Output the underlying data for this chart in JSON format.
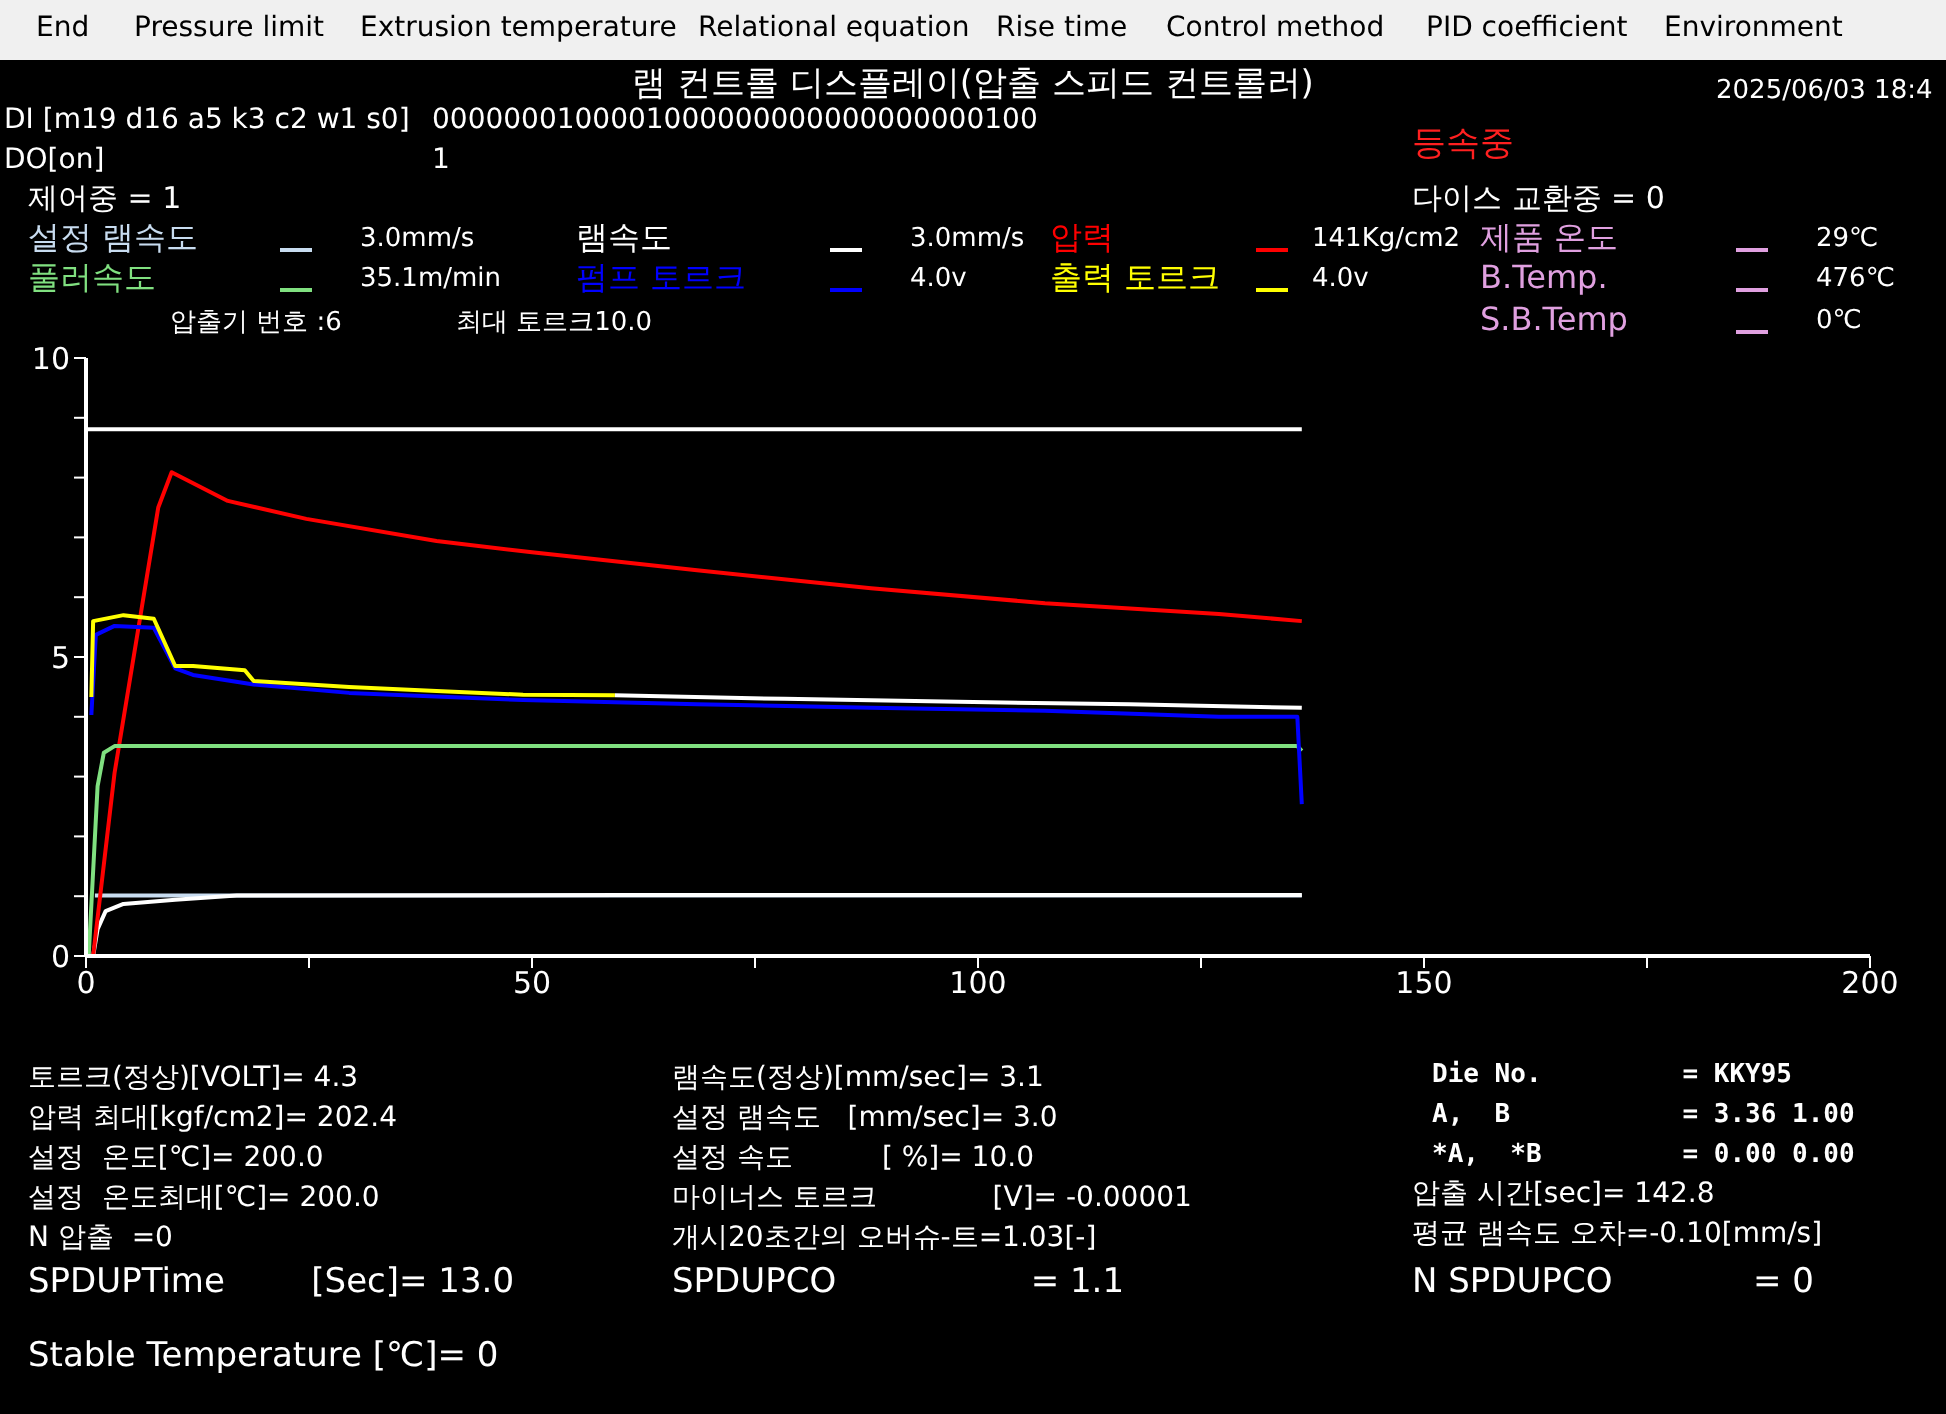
{
  "chart_data": {
    "type": "line",
    "title": "램 컨트롤 디스플레이(압출 스피드 컨트롤러)",
    "legend": "top",
    "xlim": [
      0,
      200
    ],
    "ylim": [
      0,
      10
    ],
    "xticks": [
      0,
      {
        "value": 25,
        "label": null
      },
      50,
      {
        "value": 75,
        "label": null
      },
      100,
      {
        "value": 125,
        "label": null
      },
      150,
      {
        "value": 175,
        "label": null
      },
      200
    ],
    "yticks": [
      0,
      {
        "value": 1,
        "label": null
      },
      {
        "value": 2,
        "label": null
      },
      {
        "value": 3,
        "label": null
      },
      {
        "value": 4,
        "label": null
      },
      5,
      {
        "value": 6,
        "label": null
      },
      {
        "value": 7,
        "label": null
      },
      {
        "value": 8,
        "label": null
      },
      {
        "value": 9,
        "label": null
      },
      10
    ],
    "series": [
      {
        "name": "설정 램속도",
        "color": "#c8dcf0",
        "x": [
          1,
          20,
          60,
          100,
          136.3
        ],
        "values": [
          1.01,
          1.01,
          1.01,
          1.01,
          1.01
        ]
      },
      {
        "name": "램속도",
        "color": "#ffffff",
        "x": [
          0.8,
          1.3,
          2.2,
          4.2,
          10,
          16.9,
          60,
          136.3
        ],
        "values": [
          0,
          0.45,
          0.75,
          0.87,
          0.94,
          1.01,
          1.02,
          1.02
        ]
      },
      {
        "name": "압력",
        "color": "#ff0000",
        "x": [
          0.8,
          3.2,
          8.1,
          9.6,
          15.9,
          24.7,
          39.3,
          50,
          68.5,
          88,
          107.5,
          127,
          136.3
        ],
        "values": [
          0,
          3.06,
          7.5,
          8.09,
          7.61,
          7.31,
          6.94,
          6.75,
          6.45,
          6.15,
          5.9,
          5.72,
          5.6
        ]
      },
      {
        "name": "풀러속도",
        "color": "#80e080",
        "x": [
          0.3,
          1.3,
          2,
          3.2,
          60,
          135.8,
          136.3
        ],
        "values": [
          0,
          2.84,
          3.4,
          3.51,
          3.51,
          3.51,
          3.43
        ]
      },
      {
        "name": "펌프 토르크",
        "color": "#0000ff",
        "x": [
          0.6,
          1.1,
          3.2,
          7.6,
          10,
          12,
          18.8,
          29.5,
          49,
          68.5,
          88,
          107.5,
          127,
          135.8,
          136.3
        ],
        "values": [
          4.03,
          5.37,
          5.52,
          5.49,
          4.81,
          4.7,
          4.54,
          4.4,
          4.28,
          4.21,
          4.15,
          4.1,
          4,
          4,
          2.54
        ]
      },
      {
        "name": "출력 토르크",
        "color": "#ffff00",
        "x": [
          0.6,
          0.8,
          4.2,
          7.6,
          10,
          12,
          17.8,
          18.8,
          29.5,
          39.3,
          49,
          59.3
        ],
        "values": [
          4.33,
          5.6,
          5.7,
          5.64,
          4.85,
          4.85,
          4.78,
          4.6,
          4.5,
          4.43,
          4.37,
          4.36
        ]
      },
      {
        "name": "제품 온도",
        "color": "#e0a0e0"
      },
      {
        "name": "B.Temp.",
        "color": "#e0a0e0"
      },
      {
        "name": "S.B.Temp",
        "color": "#e0a0e0"
      },
      {
        "color": "#ffffff",
        "x": [
          0,
          136.3
        ],
        "values": [
          8.81,
          8.81
        ]
      },
      {
        "color": "#ffffff",
        "x": [
          59.3,
          78.3,
          97.8,
          117,
          136.3
        ],
        "values": [
          4.36,
          4.3,
          4.25,
          4.21,
          4.15
        ]
      }
    ],
    "annotations": [
      "End",
      "Pressure limit",
      "Extrusion temperature",
      "Relational equation",
      "Rise time",
      "Control method",
      "PID coefficient",
      "Environment",
      "2025/06/03 18:4",
      "DI [m19 d16 a5 k3 c2 w1 s0]",
      "0000000100001000000000000000000100",
      "DO[on]",
      "1",
      "등속중",
      "제어중 = 1",
      "다이스 교환중 = 0",
      "3.0mm/s",
      "3.0mm/s",
      "141Kg/cm2",
      "35.1m/min",
      "4.0v",
      "4.0v",
      "압출기 번호 :6",
      "최대 토르크10.0",
      "29℃",
      "476℃",
      "0℃",
      "토르크(정상)[VOLT]= 4.3",
      "압력 최대[kgf/cm2]= 202.4",
      "설정  온도[℃]= 200.0",
      "설정  온도최대[℃]= 200.0",
      "N 압출  =0",
      "SPDUPTime        [Sec]= 13.0",
      "Stable Temperature [℃]= 0",
      "램속도(정상)[mm/sec]= 3.1",
      "설정 램속도   [mm/sec]= 3.0",
      "설정 속도          [ %]= 10.0",
      "마이너스 토르크             [V]= -0.00001",
      "개시20초간의 오버슈-트=1.03[-]",
      "SPDUPCO                  = 1.1",
      "Die No.         = KKY95",
      "A,  B           = 3.36 1.00",
      "*A,  *B         = 0.00 0.00",
      "압출 시간[sec]= 142.8",
      "평균 램속도 오차=-0.10[mm/s]",
      "N SPDUPCO             = 0"
    ]
  }
}
